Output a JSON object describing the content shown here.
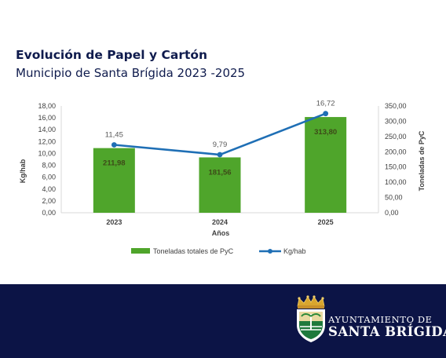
{
  "header": {
    "title": "Evolución de Papel y Cartón",
    "subtitle": "Municipio de Santa Brígida 2023 -2025"
  },
  "chart_data": {
    "type": "bar",
    "categories": [
      "2023",
      "2024",
      "2025"
    ],
    "xlabel": "Años",
    "ylabel_left": "Kg/hab",
    "ylabel_right": "Toneladas de PyC",
    "ylim_left": [
      0,
      18
    ],
    "ylim_right": [
      0,
      350
    ],
    "y_ticks_left": [
      "0,00",
      "2,00",
      "4,00",
      "6,00",
      "8,00",
      "10,00",
      "12,00",
      "14,00",
      "16,00",
      "18,00"
    ],
    "y_ticks_right": [
      "0,00",
      "50,00",
      "100,00",
      "150,00",
      "200,00",
      "250,00",
      "300,00",
      "350,00"
    ],
    "grid": false,
    "legend_position": "bottom",
    "series": [
      {
        "name": "Toneladas totales de PyC",
        "type": "bar",
        "axis": "right",
        "color": "#4fa52b",
        "values": [
          211.98,
          181.56,
          313.8
        ],
        "labels": [
          "211,98",
          "181,56",
          "313,80"
        ]
      },
      {
        "name": "Kg/hab",
        "type": "line",
        "axis": "left",
        "color": "#1f6fb5",
        "values": [
          11.45,
          9.79,
          16.72
        ],
        "labels": [
          "11,45",
          "9,79",
          "16,72"
        ]
      }
    ]
  },
  "footer": {
    "background": "#0c1446",
    "logo_line1": "AYUNTAMIENTO DE",
    "logo_line2": "SANTA BRÍGIDA"
  }
}
